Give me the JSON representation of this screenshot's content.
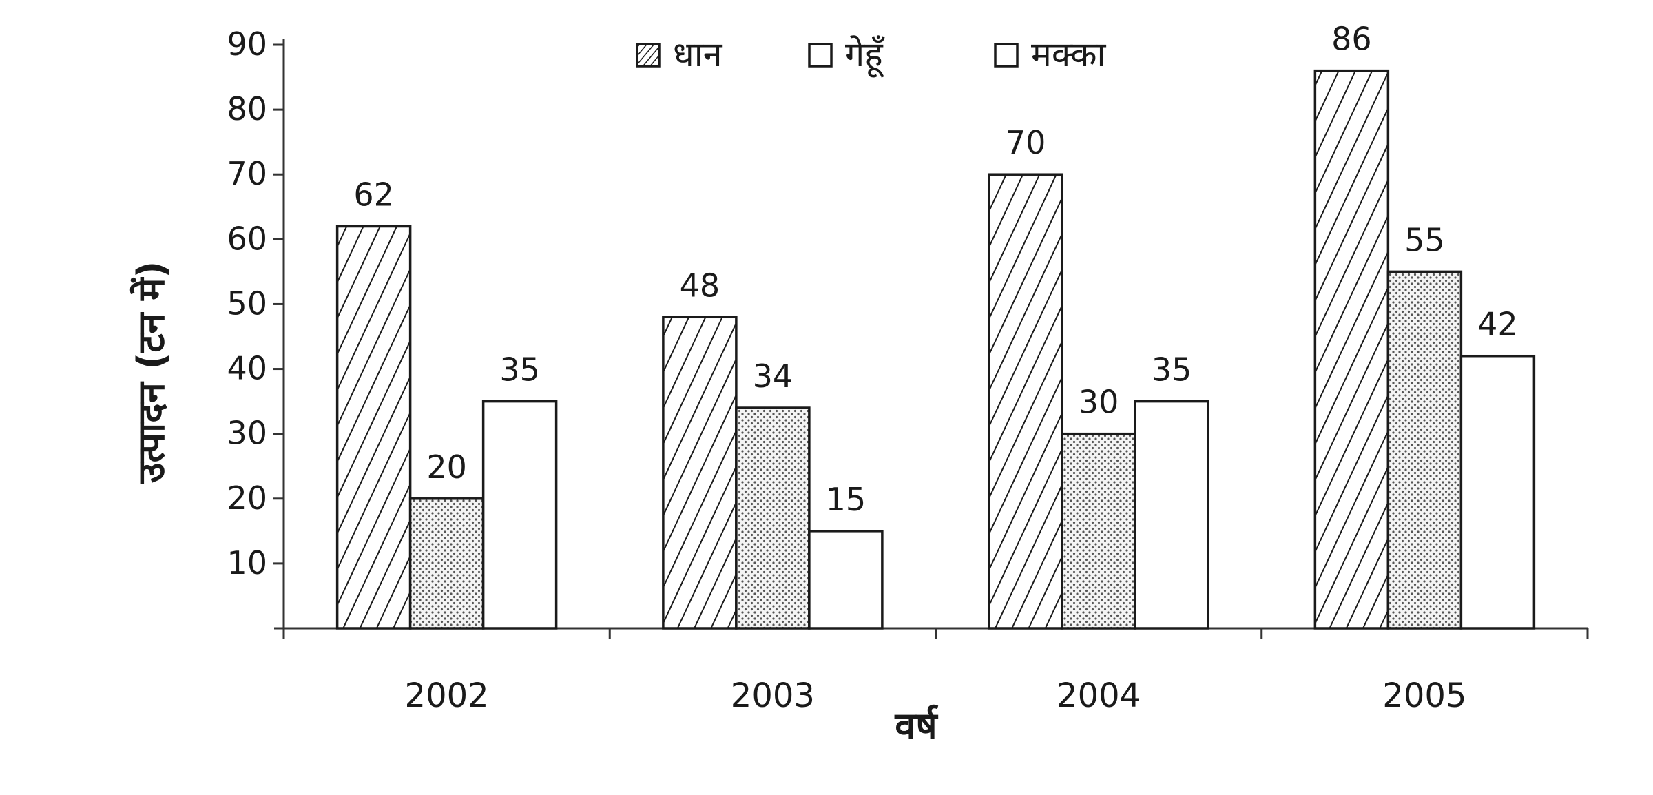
{
  "chart_data": {
    "type": "bar",
    "categories": [
      "2002",
      "2003",
      "2004",
      "2005"
    ],
    "series": [
      {
        "name": "धान",
        "values": [
          62,
          48,
          70,
          86
        ],
        "pattern": "diagonal-hatch"
      },
      {
        "name": "गेहूँ",
        "values": [
          20,
          34,
          30,
          55
        ],
        "pattern": "dots"
      },
      {
        "name": "मक्का",
        "values": [
          35,
          15,
          35,
          42
        ],
        "pattern": "blank"
      }
    ],
    "title": "",
    "xlabel": "वर्ष",
    "ylabel": "उत्पादन (टन में)",
    "ylim": [
      0,
      90
    ],
    "yticks": [
      10,
      20,
      30,
      40,
      50,
      60,
      70,
      80,
      90
    ],
    "grid": false,
    "legend_position": "top"
  }
}
